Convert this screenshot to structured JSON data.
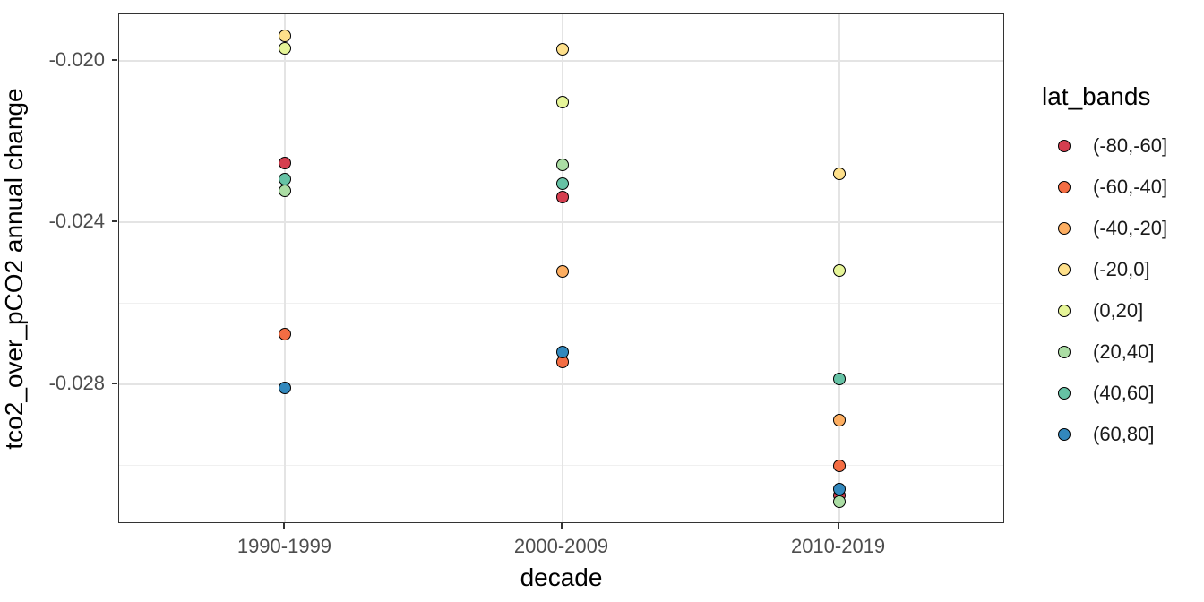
{
  "chart_data": {
    "type": "scatter",
    "title": "",
    "xlabel": "decade",
    "ylabel": "tco2_over_pCO2 annual change",
    "categories": [
      "1990-1999",
      "2000-2009",
      "2010-2019"
    ],
    "y_ticks": [
      -0.02,
      -0.024,
      -0.028
    ],
    "y_tick_labels": [
      "-0.020",
      "-0.024",
      "-0.028"
    ],
    "y_minor_gridlines": [
      -0.022,
      -0.026,
      -0.03
    ],
    "ylim": [
      -0.03146,
      -0.01885
    ],
    "grid": "major and minor horizontal, major vertical per category",
    "legend_title": "lat_bands",
    "legend_position": "right",
    "point_edge_color": "#000000",
    "series": [
      {
        "name": "(-80,-60]",
        "color": "#d53e4f",
        "points": [
          {
            "decade": "1990-1999",
            "value": -0.02253
          },
          {
            "decade": "2000-2009",
            "value": -0.02337
          },
          {
            "decade": "2010-2019",
            "value": -0.03075
          }
        ]
      },
      {
        "name": "(-60,-40]",
        "color": "#f46d43",
        "points": [
          {
            "decade": "1990-1999",
            "value": -0.02676
          },
          {
            "decade": "2000-2009",
            "value": -0.02745
          },
          {
            "decade": "2010-2019",
            "value": -0.03002
          }
        ]
      },
      {
        "name": "(-40,-20]",
        "color": "#fdae61",
        "points": [
          {
            "decade": "2000-2009",
            "value": -0.02521
          },
          {
            "decade": "2010-2019",
            "value": -0.02889
          }
        ]
      },
      {
        "name": "(-20,0]",
        "color": "#fee08b",
        "points": [
          {
            "decade": "1990-1999",
            "value": -0.01938
          },
          {
            "decade": "2000-2009",
            "value": -0.01971
          },
          {
            "decade": "2010-2019",
            "value": -0.02279
          }
        ]
      },
      {
        "name": "(0,20]",
        "color": "#e6f598",
        "points": [
          {
            "decade": "1990-1999",
            "value": -0.01969
          },
          {
            "decade": "2000-2009",
            "value": -0.02102
          },
          {
            "decade": "2010-2019",
            "value": -0.02519
          }
        ]
      },
      {
        "name": "(20,40]",
        "color": "#abdda4",
        "points": [
          {
            "decade": "1990-1999",
            "value": -0.02321
          },
          {
            "decade": "2000-2009",
            "value": -0.02257
          },
          {
            "decade": "2010-2019",
            "value": -0.0309
          }
        ]
      },
      {
        "name": "(40,60]",
        "color": "#66c2a5",
        "points": [
          {
            "decade": "1990-1999",
            "value": -0.02293
          },
          {
            "decade": "2000-2009",
            "value": -0.02304
          },
          {
            "decade": "2010-2019",
            "value": -0.02787
          }
        ]
      },
      {
        "name": "(60,80]",
        "color": "#3288bd",
        "points": [
          {
            "decade": "1990-1999",
            "value": -0.02809
          },
          {
            "decade": "2000-2009",
            "value": -0.0272
          },
          {
            "decade": "2010-2019",
            "value": -0.03059
          }
        ]
      }
    ]
  },
  "style_colors": {
    "panel_border": "#333333",
    "grid_major": "#e4e4e4",
    "grid_minor": "#f0f0f0",
    "axis_tick_text": "#4d4d4d",
    "axis_title_text": "#000000",
    "legend_text": "#1a1a1a"
  }
}
